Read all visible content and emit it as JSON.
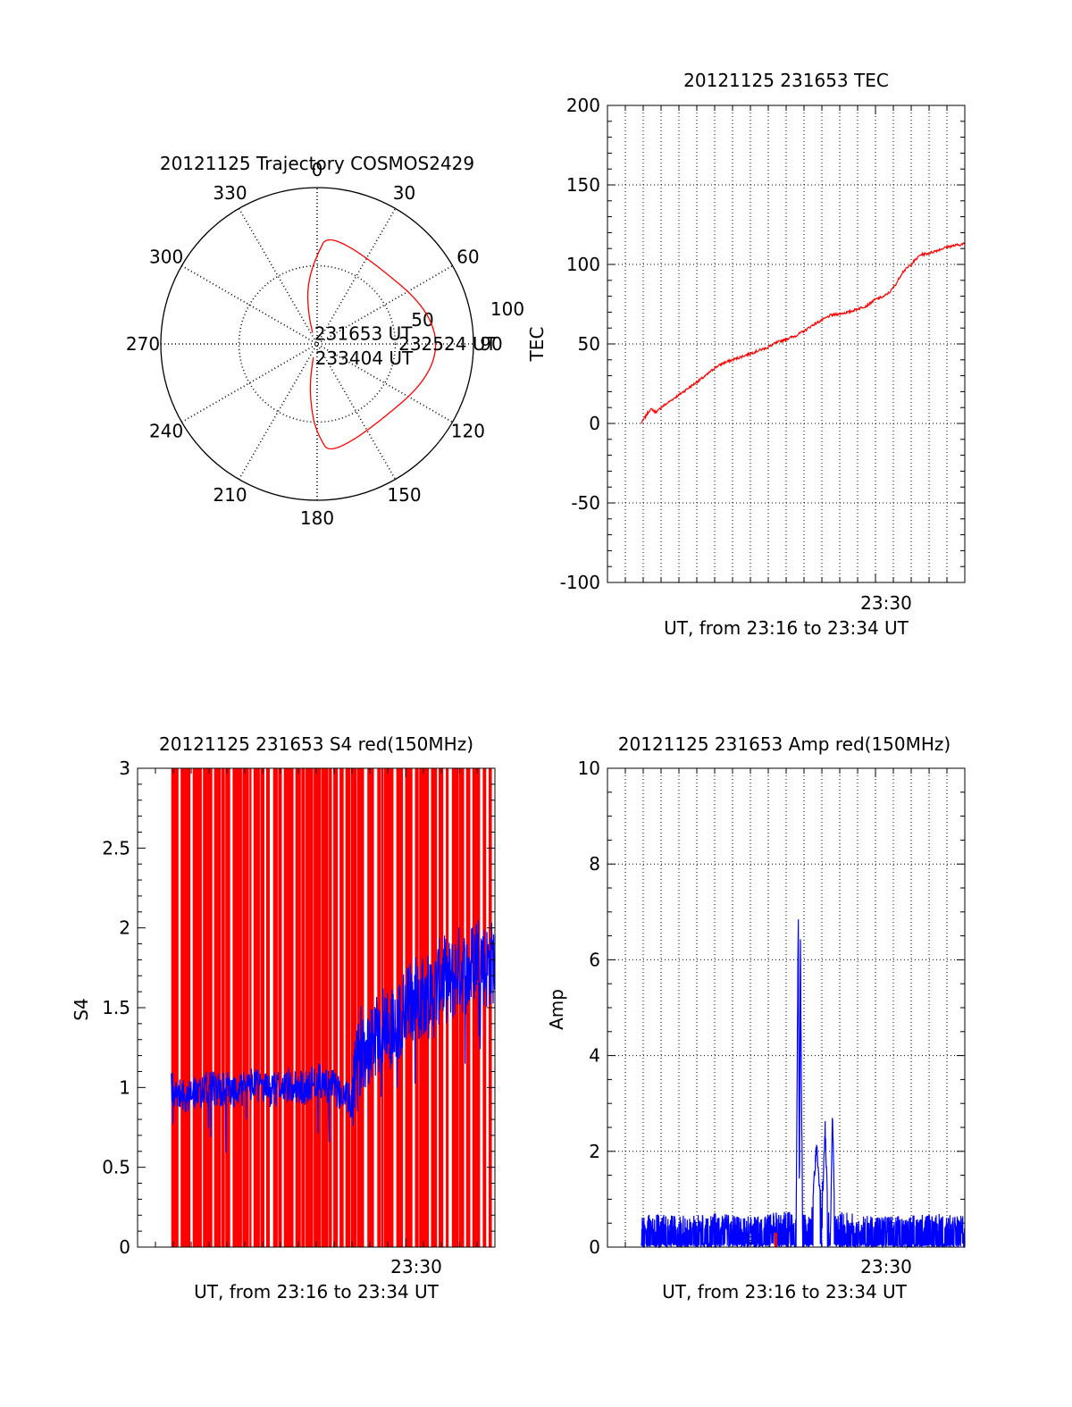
{
  "chart_data": [
    {
      "type": "polar",
      "title": "20121125 Trajectory COSMOS2429",
      "azimuth_labels": [
        "0",
        "30",
        "60",
        "90",
        "120",
        "150",
        "180",
        "210",
        "240",
        "270",
        "300",
        "330"
      ],
      "radial_labels": [
        "50",
        "100"
      ],
      "trajectory": {
        "color": "#ff0000",
        "points": [
          [
            338,
            83
          ],
          [
            344,
            72
          ],
          [
            350,
            57
          ],
          [
            358,
            42
          ],
          [
            7,
            22
          ],
          [
            90,
            2
          ],
          [
            172,
            22
          ],
          [
            181,
            40
          ],
          [
            186,
            55
          ],
          [
            191,
            69
          ],
          [
            196,
            82
          ]
        ]
      },
      "annotations": [
        {
          "text": "231653 UT",
          "az": 338,
          "el": 83
        },
        {
          "text": "232524 UT",
          "az": 90,
          "el": 2
        },
        {
          "text": "233404 UT",
          "az": 196,
          "el": 82
        }
      ]
    },
    {
      "type": "line",
      "title": "20121125 231653 TEC",
      "xlabel": "UT, from 23:16 to 23:34 UT",
      "ylabel": "TEC",
      "xlim": [
        23.25,
        23.5833
      ],
      "ylim": [
        -100,
        200
      ],
      "yticks": [
        "-100",
        "-50",
        "0",
        "50",
        "100",
        "150",
        "200"
      ],
      "xtick_label": "23:30",
      "xtick_value": 23.5,
      "grid": true,
      "series": [
        {
          "color": "#ff0000",
          "x": [
            23.2814,
            23.2833,
            23.2861,
            23.2889,
            23.2917,
            23.2944,
            23.2972,
            23.3,
            23.3083,
            23.3167,
            23.325,
            23.3333,
            23.3417,
            23.35,
            23.3583,
            23.3667,
            23.375,
            23.3833,
            23.3917,
            23.4,
            23.4083,
            23.4167,
            23.425,
            23.4333,
            23.4417,
            23.45,
            23.4583,
            23.4667,
            23.475,
            23.4833,
            23.4917,
            23.5,
            23.5083,
            23.5139,
            23.5194,
            23.525,
            23.5333,
            23.5417,
            23.55,
            23.5583,
            23.5667,
            23.575,
            23.5833
          ],
          "y": [
            0,
            2,
            5,
            8,
            9,
            7,
            8,
            10,
            14,
            18,
            22,
            26,
            30,
            35,
            38,
            40,
            42,
            44,
            46,
            48,
            51,
            53,
            55,
            58,
            62,
            65,
            68,
            69,
            70,
            72,
            74,
            78,
            80,
            83,
            88,
            95,
            100,
            106,
            107,
            109,
            111,
            112,
            113
          ]
        }
      ]
    },
    {
      "type": "line",
      "title": "20121125 231653 S4 red(150MHz)",
      "xlabel": "UT, from 23:16 to 23:34 UT",
      "ylabel": "S4",
      "xlim": [
        23.25,
        23.5833
      ],
      "ylim": [
        0,
        3
      ],
      "yticks": [
        "0",
        "0.5",
        "1",
        "1.5",
        "2",
        "2.5",
        "3"
      ],
      "xtick_label": "23:30",
      "xtick_value": 23.5,
      "grid": false,
      "background_series": {
        "color": "#ff0000",
        "description": "S4 red trace saturating full range"
      },
      "series": [
        {
          "color": "#0000ff",
          "x": [
            23.2814,
            23.2917,
            23.3,
            23.3083,
            23.3167,
            23.325,
            23.3333,
            23.3417,
            23.35,
            23.3583,
            23.3667,
            23.375,
            23.3833,
            23.3917,
            23.4,
            23.4083,
            23.4167,
            23.425,
            23.4333,
            23.4417,
            23.45,
            23.4583,
            23.4667,
            23.475,
            23.4833,
            23.4917,
            23.5,
            23.5083,
            23.5167,
            23.525,
            23.5333,
            23.5417,
            23.55,
            23.5583,
            23.5667,
            23.575,
            23.5833
          ],
          "y": [
            1.0,
            0.95,
            0.95,
            0.97,
            1.0,
            0.98,
            1.0,
            0.95,
            1.0,
            1.02,
            1.0,
            0.98,
            1.0,
            1.02,
            1.0,
            1.0,
            1.05,
            1.02,
            1.0,
            0.95,
            0.9,
            1.25,
            1.3,
            1.35,
            1.4,
            1.35,
            1.5,
            1.55,
            1.6,
            1.55,
            1.7,
            1.65,
            1.75,
            1.7,
            1.85,
            1.75,
            1.8
          ]
        }
      ]
    },
    {
      "type": "line",
      "title": "20121125 231653 Amp red(150MHz)",
      "xlabel": "UT, from 23:16 to 23:34 UT",
      "ylabel": "Amp",
      "xlim": [
        23.25,
        23.5833
      ],
      "ylim": [
        0,
        10
      ],
      "yticks": [
        "0",
        "2",
        "4",
        "6",
        "8",
        "10"
      ],
      "xtick_label": "23:30",
      "xtick_value": 23.5,
      "grid": true,
      "series": [
        {
          "color": "#0000ff",
          "x": [
            23.2814,
            23.3,
            23.325,
            23.35,
            23.375,
            23.4,
            23.42,
            23.426,
            23.428,
            23.429,
            23.43,
            23.432,
            23.436,
            23.44,
            23.445,
            23.45,
            23.453,
            23.456,
            23.458,
            23.46,
            23.462,
            23.465,
            23.47,
            23.475,
            23.5,
            23.525,
            23.55,
            23.5833
          ],
          "y": [
            0.5,
            0.55,
            0.5,
            0.55,
            0.5,
            0.55,
            0.6,
            0.7,
            7.4,
            1.0,
            6.8,
            0.6,
            0.5,
            0.6,
            2.3,
            0.6,
            2.7,
            0.6,
            0.5,
            3.1,
            0.6,
            0.5,
            0.6,
            0.55,
            0.5,
            0.5,
            0.55,
            0.5
          ]
        }
      ]
    }
  ]
}
